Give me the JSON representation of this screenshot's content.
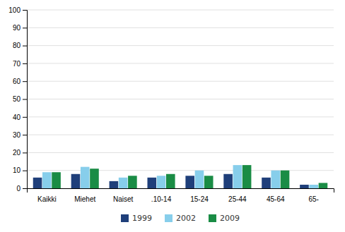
{
  "chart_data": {
    "type": "bar",
    "categories": [
      "Kaikki",
      "Miehet",
      "Naiset",
      ".10-14",
      "15-24",
      "25-44",
      "45-64",
      "65-"
    ],
    "series": [
      {
        "name": "1999",
        "color": "#1F3F7A",
        "values": [
          6,
          8,
          4,
          6,
          7,
          8,
          6,
          2
        ]
      },
      {
        "name": "2002",
        "color": "#87CEEB",
        "values": [
          9,
          12,
          6,
          7,
          10,
          13,
          10,
          2
        ]
      },
      {
        "name": "2009",
        "color": "#1A8C45",
        "values": [
          9,
          11,
          7,
          8,
          7,
          13,
          10,
          3
        ]
      }
    ],
    "ylim": [
      0,
      100
    ],
    "yticks": [
      0,
      10,
      20,
      30,
      40,
      50,
      60,
      70,
      80,
      90,
      100
    ],
    "grid": true,
    "legend": "bottom"
  }
}
